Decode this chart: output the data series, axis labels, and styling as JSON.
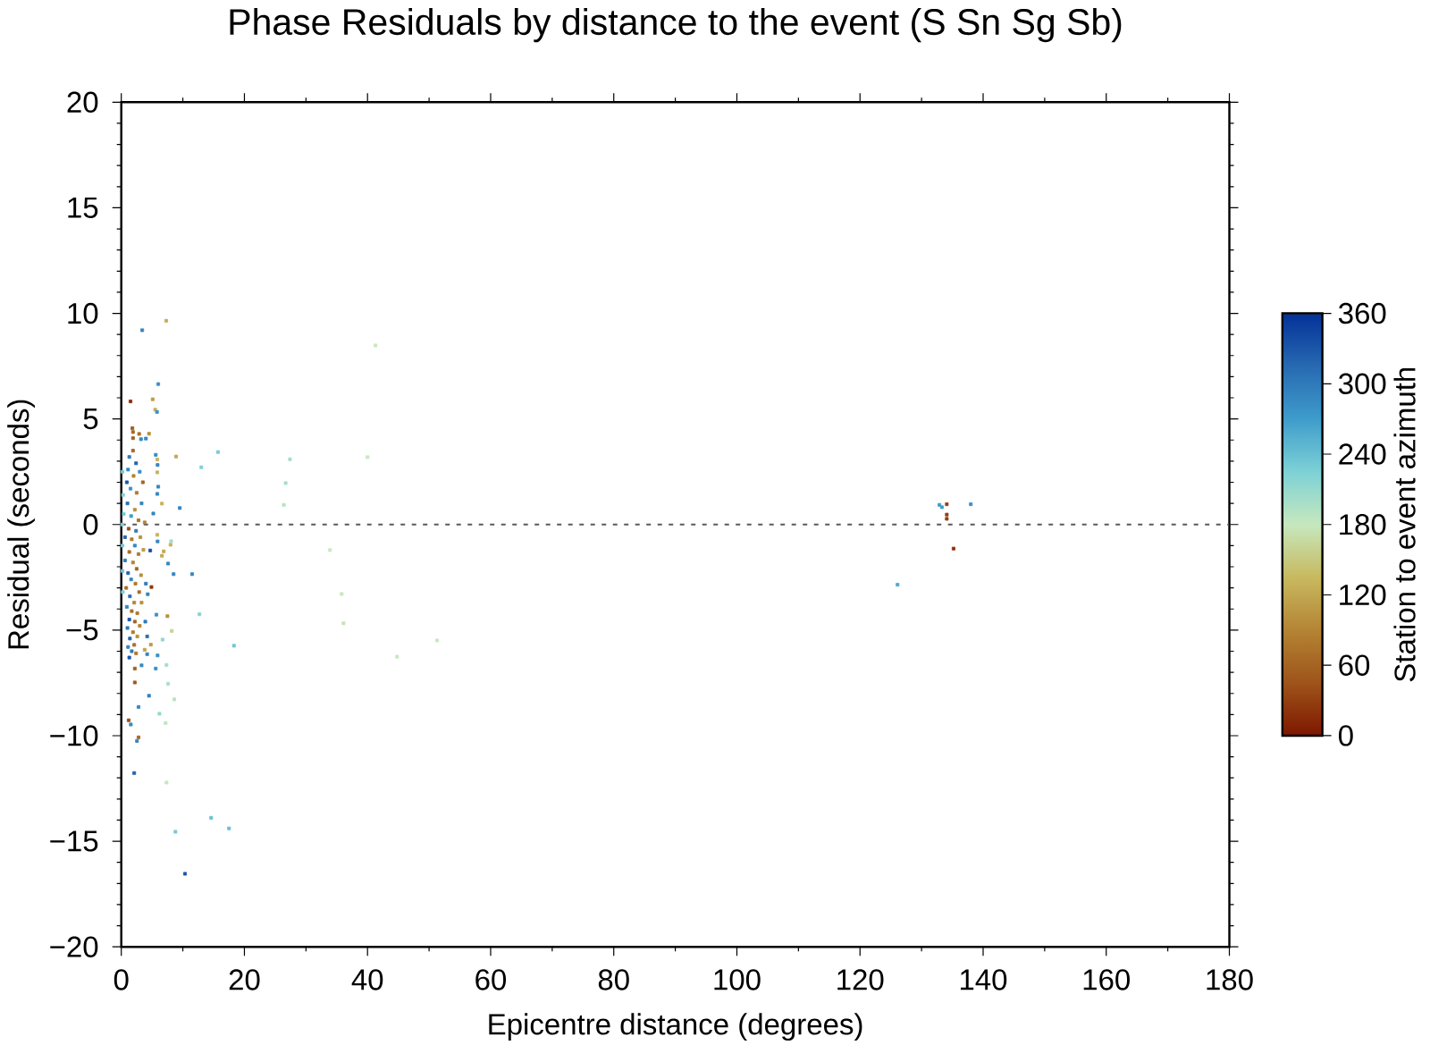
{
  "chart_data": {
    "type": "scatter",
    "title": "Phase Residuals by distance to the event (S Sn Sg Sb)",
    "xlabel": "Epicentre distance (degrees)",
    "ylabel": "Residual (seconds)",
    "clabel": "Station to event azimuth",
    "marker": "square",
    "xlim": [
      0,
      180
    ],
    "ylim": [
      -20,
      20
    ],
    "xticks": [
      0,
      20,
      40,
      60,
      80,
      100,
      120,
      140,
      160,
      180
    ],
    "yticks": [
      {
        "value": -20,
        "label": "−20"
      },
      {
        "value": -15,
        "label": "−15"
      },
      {
        "value": -10,
        "label": "−10"
      },
      {
        "value": -5,
        "label": "−5"
      },
      0,
      5,
      10,
      15,
      20
    ],
    "clim": [
      0,
      360
    ],
    "cticks": [
      0,
      60,
      120,
      180,
      240,
      300,
      360
    ],
    "ref_lines": [
      {
        "axis": "y",
        "value": 0,
        "color": "#5a5a5a",
        "line_style": "dashed"
      }
    ],
    "x": [
      1.9,
      1.3,
      2.4,
      0.2,
      1.1,
      2.0,
      3.0,
      0.9,
      3.5,
      1.5,
      2.5,
      0.3,
      3.3,
      1.0,
      2.2,
      0.4,
      1.6,
      2.8,
      3.8,
      0.15,
      1.2,
      2.4,
      0.6,
      1.7,
      3.1,
      0.2,
      2.2,
      1.3,
      2.8,
      3.6,
      0.6,
      1.9,
      2.5,
      0.2,
      1.1,
      3.2,
      1.6,
      2.3,
      0.8,
      0.25,
      2.9,
      1.4,
      2.1,
      3.3,
      0.9,
      1.7,
      2.6,
      1.3,
      2.2,
      3.0,
      1.0,
      1.9,
      2.6,
      1.4,
      2.1,
      1.1,
      1.7,
      2.4,
      1.3,
      7.3,
      3.4,
      6.0,
      1.5,
      5.1,
      5.5,
      5.8,
      1.8,
      1.9,
      1.9,
      2.9,
      4.5,
      3.2,
      4.0,
      15.7,
      8.9,
      13.0,
      9.5,
      5.6,
      41.3,
      27.4,
      40.0,
      26.7,
      26.4,
      6.6,
      8.1,
      8.0,
      6.9,
      6.6,
      7.6,
      8.5,
      11.5,
      33.9,
      35.8,
      36.1,
      7.5,
      12.7,
      8.2,
      6.7,
      18.3,
      51.3,
      44.8,
      7.35,
      4.2,
      5.9,
      3.3,
      5.6,
      2.2,
      7.6,
      2.2,
      4.5,
      8.6,
      2.8,
      6.2,
      7.2,
      1.2,
      1.55,
      2.8,
      2.55,
      2.1,
      7.35,
      14.6,
      17.5,
      8.8,
      10.35,
      132.9,
      133.3,
      134.1,
      134.1,
      134.1,
      138.0,
      135.2,
      126.1,
      5.85,
      5.9,
      5.85,
      6.0,
      5.85,
      5.2,
      5.85,
      5.9,
      4.0,
      4.3,
      3.9,
      4.2,
      4.9,
      4.7,
      4.8,
      3.8,
      5.7
    ],
    "values": [
      3.5,
      3.2,
      2.9,
      2.5,
      2.6,
      2.3,
      2.5,
      2.0,
      2.0,
      1.7,
      1.5,
      1.4,
      1.0,
      1.0,
      0.7,
      0.5,
      0.4,
      0.2,
      0.1,
      0.0,
      -0.2,
      -0.3,
      -0.6,
      -0.7,
      -0.6,
      -1.0,
      -1.0,
      -1.3,
      -1.4,
      -1.2,
      -1.7,
      -1.8,
      -2.1,
      -2.2,
      -2.3,
      -2.4,
      -2.6,
      -2.8,
      -3.0,
      -3.2,
      -3.2,
      -3.4,
      -3.7,
      -3.7,
      -3.9,
      -4.1,
      -4.2,
      -4.5,
      -4.6,
      -4.8,
      -4.9,
      -5.1,
      -5.3,
      -5.4,
      -5.7,
      -5.8,
      -6.0,
      -6.1,
      -6.3,
      9.65,
      9.2,
      6.65,
      5.83,
      5.93,
      5.44,
      5.33,
      4.56,
      4.38,
      4.09,
      4.29,
      4.3,
      4.04,
      4.07,
      3.43,
      3.22,
      2.71,
      0.78,
      3.3,
      8.48,
      3.09,
      3.19,
      1.96,
      0.93,
      0.99,
      -0.79,
      -0.96,
      -1.27,
      -1.48,
      -1.85,
      -2.35,
      -2.35,
      -1.21,
      -3.29,
      -4.68,
      -4.34,
      -4.25,
      -5.04,
      -5.45,
      -5.74,
      -5.49,
      -6.26,
      -6.65,
      -6.14,
      -6.2,
      -6.67,
      -6.82,
      -6.82,
      -7.54,
      -7.48,
      -8.11,
      -8.28,
      -8.64,
      -8.96,
      -9.4,
      -9.27,
      -9.47,
      -10.08,
      -10.25,
      -11.77,
      -12.22,
      -13.89,
      -14.39,
      -14.55,
      -16.54,
      0.93,
      0.82,
      0.96,
      0.47,
      0.27,
      0.96,
      -1.14,
      -2.85,
      3.08,
      2.82,
      2.47,
      1.79,
      1.45,
      0.52,
      -0.49,
      -0.8,
      -2.8,
      -3.3,
      -4.6,
      -5.3,
      -2.96,
      -1.23,
      -5.69,
      -5.93,
      -4.27
    ],
    "cvalues": [
      60,
      300,
      320,
      230,
      290,
      90,
      280,
      330,
      60,
      280,
      80,
      220,
      290,
      310,
      100,
      230,
      270,
      70,
      90,
      225,
      40,
      300,
      320,
      80,
      100,
      230,
      290,
      70,
      80,
      110,
      300,
      90,
      60,
      235,
      320,
      100,
      290,
      80,
      70,
      225,
      70,
      310,
      90,
      100,
      290,
      70,
      80,
      330,
      60,
      90,
      300,
      80,
      100,
      320,
      70,
      290,
      300,
      80,
      330,
      125,
      290,
      280,
      15,
      110,
      130,
      280,
      50,
      60,
      55,
      70,
      100,
      290,
      290,
      230,
      120,
      225,
      290,
      285,
      180,
      200,
      180,
      200,
      190,
      130,
      200,
      130,
      120,
      120,
      290,
      290,
      290,
      180,
      180,
      175,
      100,
      220,
      160,
      215,
      235,
      180,
      180,
      200,
      290,
      280,
      285,
      280,
      55,
      200,
      50,
      295,
      190,
      290,
      210,
      185,
      40,
      285,
      60,
      290,
      320,
      180,
      240,
      240,
      230,
      330,
      270,
      270,
      30,
      30,
      30,
      280,
      20,
      260,
      130,
      290,
      130,
      290,
      290,
      290,
      130,
      290,
      300,
      290,
      300,
      310,
      25,
      340,
      110,
      115,
      280
    ]
  }
}
